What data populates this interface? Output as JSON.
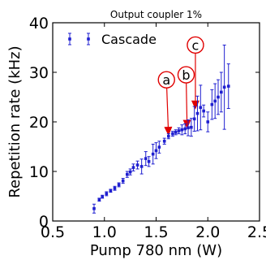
{
  "chart_data": {
    "type": "scatter",
    "title": "Output coupler 1%",
    "xlabel": "Pump 780 nm (W)",
    "ylabel": "Repetition rate (kHz)",
    "xlim": [
      0.5,
      2.5
    ],
    "ylim": [
      0,
      40
    ],
    "xticks": [
      "0.5",
      "1.0",
      "1.5",
      "2.0",
      "2.5"
    ],
    "yticks": [
      "0",
      "10",
      "20",
      "30",
      "40"
    ],
    "grid": false,
    "legend_position": "top-left",
    "series": [
      {
        "name": "Cascade",
        "color": "#1f1fd0",
        "points": [
          {
            "x": 0.9,
            "y": 2.5,
            "err": 0.9
          },
          {
            "x": 0.95,
            "y": 4.3,
            "err": 0.3
          },
          {
            "x": 0.98,
            "y": 4.9,
            "err": 0.3
          },
          {
            "x": 1.02,
            "y": 5.5,
            "err": 0.4
          },
          {
            "x": 1.06,
            "y": 6.1,
            "err": 0.3
          },
          {
            "x": 1.1,
            "y": 6.6,
            "err": 0.4
          },
          {
            "x": 1.14,
            "y": 7.3,
            "err": 0.4
          },
          {
            "x": 1.18,
            "y": 8.1,
            "err": 0.5
          },
          {
            "x": 1.22,
            "y": 9.4,
            "err": 0.6
          },
          {
            "x": 1.25,
            "y": 9.9,
            "err": 0.6
          },
          {
            "x": 1.28,
            "y": 10.8,
            "err": 0.7
          },
          {
            "x": 1.32,
            "y": 11.3,
            "err": 0.8
          },
          {
            "x": 1.36,
            "y": 11.0,
            "err": 1.5
          },
          {
            "x": 1.4,
            "y": 12.6,
            "err": 1.4
          },
          {
            "x": 1.43,
            "y": 12.0,
            "err": 1.0
          },
          {
            "x": 1.47,
            "y": 13.5,
            "err": 2.0
          },
          {
            "x": 1.5,
            "y": 14.2,
            "err": 1.6
          },
          {
            "x": 1.53,
            "y": 14.9,
            "err": 1.2
          },
          {
            "x": 1.58,
            "y": 16.1,
            "err": 0.6
          },
          {
            "x": 1.62,
            "y": 17.1,
            "err": 0.5
          },
          {
            "x": 1.66,
            "y": 17.6,
            "err": 0.5
          },
          {
            "x": 1.69,
            "y": 17.9,
            "err": 0.5
          },
          {
            "x": 1.72,
            "y": 18.2,
            "err": 0.6
          },
          {
            "x": 1.75,
            "y": 18.4,
            "err": 1.0
          },
          {
            "x": 1.78,
            "y": 18.6,
            "err": 1.0
          },
          {
            "x": 1.81,
            "y": 18.8,
            "err": 1.6
          },
          {
            "x": 1.84,
            "y": 18.9,
            "err": 1.8
          },
          {
            "x": 1.87,
            "y": 20.6,
            "err": 2.5
          },
          {
            "x": 1.9,
            "y": 21.7,
            "err": 3.5
          },
          {
            "x": 1.93,
            "y": 22.9,
            "err": 4.5
          },
          {
            "x": 1.96,
            "y": 22.2,
            "err": 1.2
          },
          {
            "x": 2.0,
            "y": 20.0,
            "err": 2.0
          },
          {
            "x": 2.04,
            "y": 23.5,
            "err": 3.0
          },
          {
            "x": 2.07,
            "y": 24.2,
            "err": 3.5
          },
          {
            "x": 2.1,
            "y": 25.0,
            "err": 3.5
          },
          {
            "x": 2.13,
            "y": 26.0,
            "err": 4.0
          },
          {
            "x": 2.16,
            "y": 27.0,
            "err": 8.5
          },
          {
            "x": 2.2,
            "y": 27.2,
            "err": 4.5
          }
        ]
      }
    ],
    "annotations": [
      {
        "label": "a",
        "circle_at": {
          "x": 1.6,
          "y": 28.5
        },
        "arrow_to": {
          "x": 1.62,
          "y": 17.2
        },
        "color": "#e00000"
      },
      {
        "label": "b",
        "circle_at": {
          "x": 1.79,
          "y": 29.5
        },
        "arrow_to": {
          "x": 1.8,
          "y": 18.6
        },
        "color": "#e00000"
      },
      {
        "label": "c",
        "circle_at": {
          "x": 1.88,
          "y": 35.5
        },
        "arrow_to": {
          "x": 1.88,
          "y": 22.5
        },
        "color": "#e00000"
      }
    ]
  }
}
